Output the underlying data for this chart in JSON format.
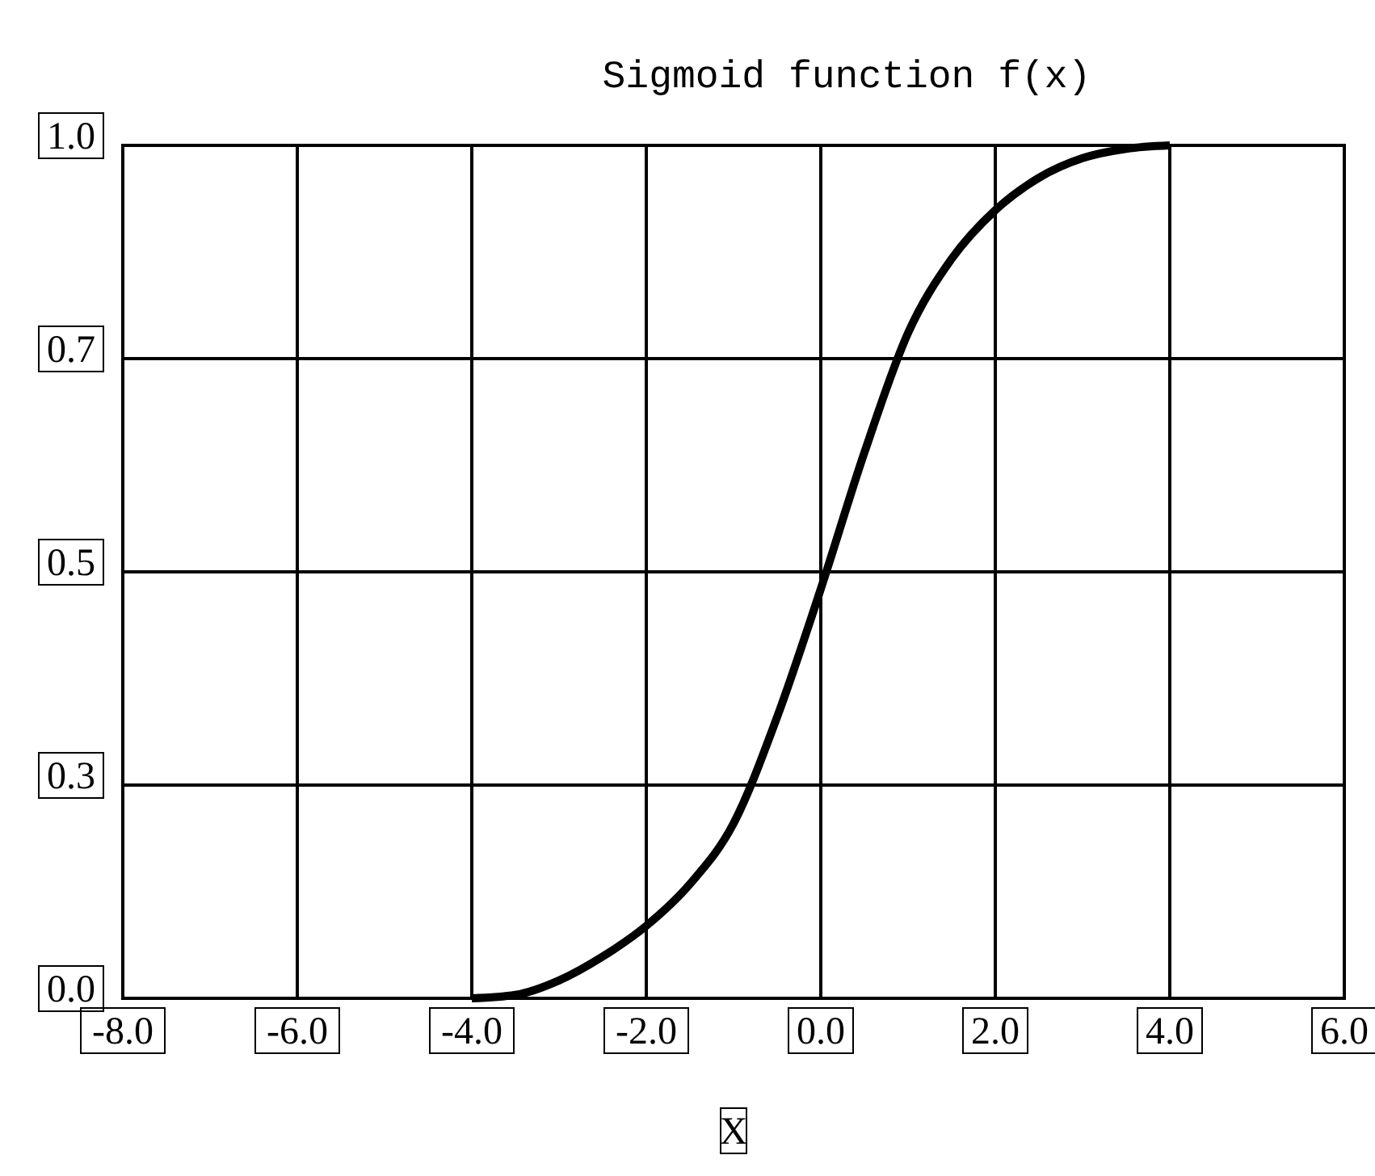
{
  "chart_data": {
    "type": "line",
    "title": "Sigmoid function f(x)",
    "xlabel": "X",
    "x": [
      -4,
      -3.5,
      -3,
      -2.5,
      -2,
      -1.5,
      -1,
      -0.5,
      0,
      0.5,
      1,
      1.5,
      2,
      2.5,
      3,
      3.5,
      4
    ],
    "series": [
      {
        "color": "#000000",
        "values": [
          0,
          0.004,
          0.021,
          0.049,
          0.085,
          0.134,
          0.205,
          0.33,
          0.48,
          0.64,
          0.78,
          0.867,
          0.924,
          0.962,
          0.985,
          0.996,
          1.0
        ]
      }
    ],
    "xlim": [
      -8,
      6
    ],
    "xticks": [
      {
        "value": -8,
        "label": "-8.0"
      },
      {
        "value": -6,
        "label": "-6.0"
      },
      {
        "value": -4,
        "label": "-4.0"
      },
      {
        "value": -2,
        "label": "-2.0"
      },
      {
        "value": 0,
        "label": "0.0"
      },
      {
        "value": 2,
        "label": "2.0"
      },
      {
        "value": 4,
        "label": "4.0"
      },
      {
        "value": 6,
        "label": "6.0"
      }
    ],
    "ylim": [
      0,
      1
    ],
    "yticks": [
      {
        "value": 0,
        "label": "0.0"
      },
      {
        "value": 0.25,
        "label": "0.3"
      },
      {
        "value": 0.5,
        "label": "0.5"
      },
      {
        "value": 0.75,
        "label": "0.7"
      },
      {
        "value": 1,
        "label": "1.0"
      }
    ],
    "grid": true,
    "marker": "none",
    "line_style": "solid"
  }
}
